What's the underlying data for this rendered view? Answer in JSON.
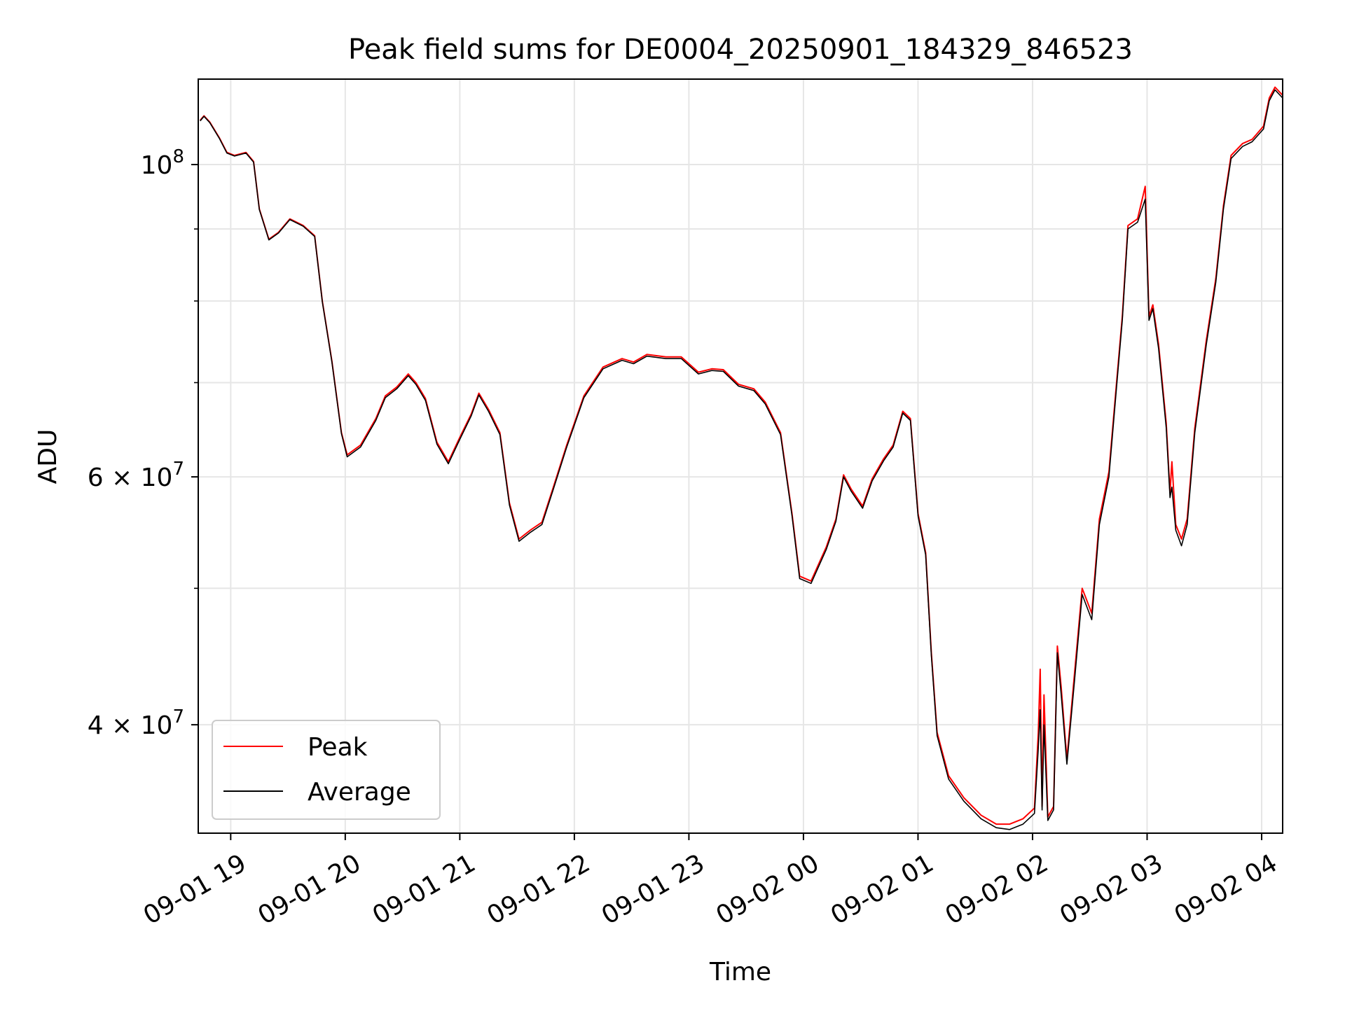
{
  "chart_data": {
    "type": "line",
    "title": "Peak field sums for DE0004_20250901_184329_846523",
    "xlabel": "Time",
    "ylabel": "ADU",
    "yscale": "log",
    "grid": true,
    "legend_position": "lower-left",
    "xlim": [
      "2025-09-01 18:43",
      "2025-09-02 04:11"
    ],
    "ylim": [
      33500000,
      115000000
    ],
    "x_ticks": [
      {
        "value": "2025-09-01 19:00",
        "label": "09-01 19"
      },
      {
        "value": "2025-09-01 20:00",
        "label": "09-01 20"
      },
      {
        "value": "2025-09-01 21:00",
        "label": "09-01 21"
      },
      {
        "value": "2025-09-01 22:00",
        "label": "09-01 22"
      },
      {
        "value": "2025-09-01 23:00",
        "label": "09-01 23"
      },
      {
        "value": "2025-09-02 00:00",
        "label": "09-02 00"
      },
      {
        "value": "2025-09-02 01:00",
        "label": "09-02 01"
      },
      {
        "value": "2025-09-02 02:00",
        "label": "09-02 02"
      },
      {
        "value": "2025-09-02 03:00",
        "label": "09-02 03"
      },
      {
        "value": "2025-09-02 04:00",
        "label": "09-02 04"
      }
    ],
    "y_major_ticks": [
      {
        "value": 40000000,
        "mant": "4",
        "exp": "7"
      },
      {
        "value": 60000000,
        "mant": "6",
        "exp": "7"
      },
      {
        "value": 100000000,
        "mant": "",
        "exp": "8"
      }
    ],
    "y_minor_gridlines": [
      50000000,
      70000000,
      80000000,
      90000000
    ],
    "colors": {
      "peak": "#ff0000",
      "average": "#000000",
      "grid": "#e6e6e6"
    },
    "series": [
      {
        "name": "Peak",
        "color": "#ff0000",
        "points": [
          [
            "2025-09-01 18:44",
            107500000
          ],
          [
            "2025-09-01 18:46",
            108300000
          ],
          [
            "2025-09-01 18:49",
            107200000
          ],
          [
            "2025-09-01 18:54",
            104500000
          ],
          [
            "2025-09-01 18:58",
            102000000
          ],
          [
            "2025-09-01 19:02",
            101500000
          ],
          [
            "2025-09-01 19:08",
            102000000
          ],
          [
            "2025-09-01 19:12",
            100500000
          ],
          [
            "2025-09-01 19:15",
            93000000
          ],
          [
            "2025-09-01 19:20",
            88500000
          ],
          [
            "2025-09-01 19:25",
            89500000
          ],
          [
            "2025-09-01 19:31",
            91500000
          ],
          [
            "2025-09-01 19:38",
            90500000
          ],
          [
            "2025-09-01 19:44",
            89000000
          ],
          [
            "2025-09-01 19:48",
            80000000
          ],
          [
            "2025-09-01 19:53",
            72500000
          ],
          [
            "2025-09-01 19:58",
            64500000
          ],
          [
            "2025-09-01 20:01",
            62200000
          ],
          [
            "2025-09-01 20:08",
            63200000
          ],
          [
            "2025-09-01 20:16",
            66000000
          ],
          [
            "2025-09-01 20:21",
            68500000
          ],
          [
            "2025-09-01 20:27",
            69500000
          ],
          [
            "2025-09-01 20:33",
            71000000
          ],
          [
            "2025-09-01 20:37",
            70000000
          ],
          [
            "2025-09-01 20:42",
            68200000
          ],
          [
            "2025-09-01 20:48",
            63500000
          ],
          [
            "2025-09-01 20:54",
            61500000
          ],
          [
            "2025-09-01 21:00",
            64000000
          ],
          [
            "2025-09-01 21:06",
            66500000
          ],
          [
            "2025-09-01 21:10",
            68800000
          ],
          [
            "2025-09-01 21:15",
            67000000
          ],
          [
            "2025-09-01 21:21",
            64500000
          ],
          [
            "2025-09-01 21:26",
            57500000
          ],
          [
            "2025-09-01 21:31",
            54200000
          ],
          [
            "2025-09-01 21:37",
            55000000
          ],
          [
            "2025-09-01 21:43",
            55700000
          ],
          [
            "2025-09-01 21:49",
            59000000
          ],
          [
            "2025-09-01 21:56",
            63200000
          ],
          [
            "2025-09-01 22:05",
            68500000
          ],
          [
            "2025-09-01 22:15",
            71800000
          ],
          [
            "2025-09-01 22:25",
            72800000
          ],
          [
            "2025-09-01 22:31",
            72400000
          ],
          [
            "2025-09-01 22:38",
            73300000
          ],
          [
            "2025-09-01 22:48",
            73000000
          ],
          [
            "2025-09-01 22:56",
            73000000
          ],
          [
            "2025-09-01 23:05",
            71200000
          ],
          [
            "2025-09-01 23:12",
            71600000
          ],
          [
            "2025-09-01 23:18",
            71500000
          ],
          [
            "2025-09-01 23:26",
            69800000
          ],
          [
            "2025-09-01 23:34",
            69300000
          ],
          [
            "2025-09-01 23:40",
            67800000
          ],
          [
            "2025-09-01 23:48",
            64500000
          ],
          [
            "2025-09-01 23:54",
            56500000
          ],
          [
            "2025-09-01 23:58",
            51000000
          ],
          [
            "2025-09-02 00:04",
            50600000
          ],
          [
            "2025-09-02 00:12",
            53500000
          ],
          [
            "2025-09-02 00:17",
            56000000
          ],
          [
            "2025-09-02 00:21",
            60200000
          ],
          [
            "2025-09-02 00:25",
            58800000
          ],
          [
            "2025-09-02 00:31",
            57200000
          ],
          [
            "2025-09-02 00:36",
            59800000
          ],
          [
            "2025-09-02 00:42",
            61800000
          ],
          [
            "2025-09-02 00:47",
            63200000
          ],
          [
            "2025-09-02 00:52",
            66800000
          ],
          [
            "2025-09-02 00:56",
            66000000
          ],
          [
            "2025-09-02 01:00",
            56500000
          ],
          [
            "2025-09-02 01:04",
            53000000
          ],
          [
            "2025-09-02 01:07",
            45000000
          ],
          [
            "2025-09-02 01:10",
            39500000
          ],
          [
            "2025-09-02 01:16",
            36800000
          ],
          [
            "2025-09-02 01:24",
            35500000
          ],
          [
            "2025-09-02 01:33",
            34500000
          ],
          [
            "2025-09-02 01:41",
            34000000
          ],
          [
            "2025-09-02 01:48",
            34000000
          ],
          [
            "2025-09-02 01:55",
            34300000
          ],
          [
            "2025-09-02 02:01",
            34900000
          ],
          [
            "2025-09-02 02:03",
            39500000
          ],
          [
            "2025-09-02 02:04",
            43800000
          ],
          [
            "2025-09-02 02:05",
            35000000
          ],
          [
            "2025-09-02 02:06",
            42000000
          ],
          [
            "2025-09-02 02:08",
            34400000
          ],
          [
            "2025-09-02 02:11",
            35000000
          ],
          [
            "2025-09-02 02:13",
            45500000
          ],
          [
            "2025-09-02 02:15",
            42500000
          ],
          [
            "2025-09-02 02:18",
            37800000
          ],
          [
            "2025-09-02 02:22",
            43500000
          ],
          [
            "2025-09-02 02:26",
            50000000
          ],
          [
            "2025-09-02 02:31",
            48000000
          ],
          [
            "2025-09-02 02:35",
            56000000
          ],
          [
            "2025-09-02 02:40",
            60500000
          ],
          [
            "2025-09-02 02:44",
            70000000
          ],
          [
            "2025-09-02 02:47",
            78000000
          ],
          [
            "2025-09-02 02:50",
            90500000
          ],
          [
            "2025-09-02 02:55",
            91500000
          ],
          [
            "2025-09-02 02:59",
            96500000
          ],
          [
            "2025-09-02 03:01",
            78000000
          ],
          [
            "2025-09-02 03:03",
            79500000
          ],
          [
            "2025-09-02 03:06",
            74500000
          ],
          [
            "2025-09-02 03:10",
            65500000
          ],
          [
            "2025-09-02 03:12",
            58500000
          ],
          [
            "2025-09-02 03:13",
            61500000
          ],
          [
            "2025-09-02 03:15",
            55500000
          ],
          [
            "2025-09-02 03:18",
            54200000
          ],
          [
            "2025-09-02 03:21",
            56000000
          ],
          [
            "2025-09-02 03:25",
            65000000
          ],
          [
            "2025-09-02 03:31",
            75000000
          ],
          [
            "2025-09-02 03:36",
            83000000
          ],
          [
            "2025-09-02 03:40",
            93500000
          ],
          [
            "2025-09-02 03:44",
            101500000
          ],
          [
            "2025-09-02 03:50",
            103500000
          ],
          [
            "2025-09-02 03:55",
            104200000
          ],
          [
            "2025-09-02 04:01",
            106500000
          ],
          [
            "2025-09-02 04:04",
            111500000
          ],
          [
            "2025-09-02 04:07",
            113500000
          ],
          [
            "2025-09-02 04:11",
            112000000
          ]
        ]
      },
      {
        "name": "Average",
        "color": "#000000",
        "points": [
          [
            "2025-09-01 18:44",
            107400000
          ],
          [
            "2025-09-01 18:46",
            108200000
          ],
          [
            "2025-09-01 18:49",
            107100000
          ],
          [
            "2025-09-01 18:54",
            104400000
          ],
          [
            "2025-09-01 18:58",
            101900000
          ],
          [
            "2025-09-01 19:02",
            101400000
          ],
          [
            "2025-09-01 19:08",
            101900000
          ],
          [
            "2025-09-01 19:12",
            100400000
          ],
          [
            "2025-09-01 19:15",
            92900000
          ],
          [
            "2025-09-01 19:20",
            88400000
          ],
          [
            "2025-09-01 19:25",
            89400000
          ],
          [
            "2025-09-01 19:31",
            91400000
          ],
          [
            "2025-09-01 19:38",
            90400000
          ],
          [
            "2025-09-01 19:44",
            88900000
          ],
          [
            "2025-09-01 19:48",
            79900000
          ],
          [
            "2025-09-01 19:53",
            72400000
          ],
          [
            "2025-09-01 19:58",
            64400000
          ],
          [
            "2025-09-01 20:01",
            62000000
          ],
          [
            "2025-09-01 20:08",
            63000000
          ],
          [
            "2025-09-01 20:16",
            65800000
          ],
          [
            "2025-09-01 20:21",
            68300000
          ],
          [
            "2025-09-01 20:27",
            69300000
          ],
          [
            "2025-09-01 20:33",
            70800000
          ],
          [
            "2025-09-01 20:37",
            69800000
          ],
          [
            "2025-09-01 20:42",
            68000000
          ],
          [
            "2025-09-01 20:48",
            63300000
          ],
          [
            "2025-09-01 20:54",
            61300000
          ],
          [
            "2025-09-01 21:00",
            63800000
          ],
          [
            "2025-09-01 21:06",
            66300000
          ],
          [
            "2025-09-01 21:10",
            68600000
          ],
          [
            "2025-09-01 21:15",
            66800000
          ],
          [
            "2025-09-01 21:21",
            64300000
          ],
          [
            "2025-09-01 21:26",
            57300000
          ],
          [
            "2025-09-01 21:31",
            54000000
          ],
          [
            "2025-09-01 21:37",
            54800000
          ],
          [
            "2025-09-01 21:43",
            55500000
          ],
          [
            "2025-09-01 21:49",
            58800000
          ],
          [
            "2025-09-01 21:56",
            63000000
          ],
          [
            "2025-09-01 22:05",
            68300000
          ],
          [
            "2025-09-01 22:15",
            71600000
          ],
          [
            "2025-09-01 22:25",
            72600000
          ],
          [
            "2025-09-01 22:31",
            72200000
          ],
          [
            "2025-09-01 22:38",
            73100000
          ],
          [
            "2025-09-01 22:48",
            72800000
          ],
          [
            "2025-09-01 22:56",
            72800000
          ],
          [
            "2025-09-01 23:05",
            71000000
          ],
          [
            "2025-09-01 23:12",
            71400000
          ],
          [
            "2025-09-01 23:18",
            71300000
          ],
          [
            "2025-09-01 23:26",
            69600000
          ],
          [
            "2025-09-01 23:34",
            69100000
          ],
          [
            "2025-09-01 23:40",
            67600000
          ],
          [
            "2025-09-01 23:48",
            64300000
          ],
          [
            "2025-09-01 23:54",
            56300000
          ],
          [
            "2025-09-01 23:58",
            50800000
          ],
          [
            "2025-09-02 00:04",
            50400000
          ],
          [
            "2025-09-02 00:12",
            53300000
          ],
          [
            "2025-09-02 00:17",
            55800000
          ],
          [
            "2025-09-02 00:21",
            60000000
          ],
          [
            "2025-09-02 00:25",
            58600000
          ],
          [
            "2025-09-02 00:31",
            57000000
          ],
          [
            "2025-09-02 00:36",
            59600000
          ],
          [
            "2025-09-02 00:42",
            61600000
          ],
          [
            "2025-09-02 00:47",
            63000000
          ],
          [
            "2025-09-02 00:52",
            66600000
          ],
          [
            "2025-09-02 00:56",
            65800000
          ],
          [
            "2025-09-02 01:00",
            56300000
          ],
          [
            "2025-09-02 01:04",
            52800000
          ],
          [
            "2025-09-02 01:07",
            44800000
          ],
          [
            "2025-09-02 01:10",
            39300000
          ],
          [
            "2025-09-02 01:16",
            36600000
          ],
          [
            "2025-09-02 01:24",
            35300000
          ],
          [
            "2025-09-02 01:33",
            34300000
          ],
          [
            "2025-09-02 01:41",
            33800000
          ],
          [
            "2025-09-02 01:48",
            33700000
          ],
          [
            "2025-09-02 01:55",
            34000000
          ],
          [
            "2025-09-02 02:01",
            34600000
          ],
          [
            "2025-09-02 02:03",
            38500000
          ],
          [
            "2025-09-02 02:04",
            41000000
          ],
          [
            "2025-09-02 02:05",
            34800000
          ],
          [
            "2025-09-02 02:06",
            40000000
          ],
          [
            "2025-09-02 02:08",
            34200000
          ],
          [
            "2025-09-02 02:11",
            34800000
          ],
          [
            "2025-09-02 02:13",
            45000000
          ],
          [
            "2025-09-02 02:15",
            42000000
          ],
          [
            "2025-09-02 02:18",
            37500000
          ],
          [
            "2025-09-02 02:22",
            43000000
          ],
          [
            "2025-09-02 02:26",
            49500000
          ],
          [
            "2025-09-02 02:31",
            47500000
          ],
          [
            "2025-09-02 02:35",
            55500000
          ],
          [
            "2025-09-02 02:40",
            60000000
          ],
          [
            "2025-09-02 02:44",
            69500000
          ],
          [
            "2025-09-02 02:47",
            77500000
          ],
          [
            "2025-09-02 02:50",
            90000000
          ],
          [
            "2025-09-02 02:55",
            91000000
          ],
          [
            "2025-09-02 02:59",
            94500000
          ],
          [
            "2025-09-02 03:01",
            77500000
          ],
          [
            "2025-09-02 03:03",
            79000000
          ],
          [
            "2025-09-02 03:06",
            74000000
          ],
          [
            "2025-09-02 03:10",
            65000000
          ],
          [
            "2025-09-02 03:12",
            58000000
          ],
          [
            "2025-09-02 03:13",
            59000000
          ],
          [
            "2025-09-02 03:15",
            55000000
          ],
          [
            "2025-09-02 03:18",
            53600000
          ],
          [
            "2025-09-02 03:21",
            55500000
          ],
          [
            "2025-09-02 03:25",
            64500000
          ],
          [
            "2025-09-02 03:31",
            74500000
          ],
          [
            "2025-09-02 03:36",
            82500000
          ],
          [
            "2025-09-02 03:40",
            93000000
          ],
          [
            "2025-09-02 03:44",
            101000000
          ],
          [
            "2025-09-02 03:50",
            103000000
          ],
          [
            "2025-09-02 03:55",
            103800000
          ],
          [
            "2025-09-02 04:01",
            106000000
          ],
          [
            "2025-09-02 04:04",
            111000000
          ],
          [
            "2025-09-02 04:07",
            113000000
          ],
          [
            "2025-09-02 04:11",
            111500000
          ]
        ]
      }
    ]
  }
}
